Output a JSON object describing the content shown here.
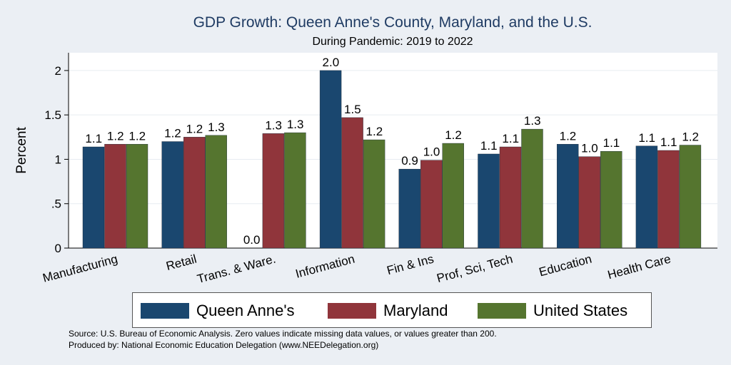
{
  "chart_data": {
    "type": "bar",
    "title": "GDP Growth: Queen Anne's County, Maryland, and the U.S.",
    "subtitle": "During Pandemic: 2019 to 2022",
    "ylabel": "Percent",
    "xlabel": "",
    "ylim": [
      0,
      2.2
    ],
    "yticks": [
      {
        "value": 0,
        "label": "0"
      },
      {
        "value": 0.5,
        "label": ".5"
      },
      {
        "value": 1,
        "label": "1"
      },
      {
        "value": 1.5,
        "label": "1.5"
      },
      {
        "value": 2,
        "label": "2"
      }
    ],
    "grid": true,
    "legend_position": "bottom",
    "categories": [
      "Manufacturing",
      "Retail",
      "Trans. & Ware.",
      "Information",
      "Fin & Ins",
      "Prof, Sci, Tech",
      "Education",
      "Health Care"
    ],
    "series": [
      {
        "name": "Queen Anne's",
        "color": "#1a476f",
        "values": [
          1.14,
          1.2,
          0.0,
          2.0,
          0.89,
          1.06,
          1.17,
          1.15
        ],
        "labels": [
          "1.1",
          "1.2",
          "0.0",
          "2.0",
          "0.9",
          "1.1",
          "1.2",
          "1.1"
        ]
      },
      {
        "name": "Maryland",
        "color": "#90353b",
        "values": [
          1.17,
          1.25,
          1.29,
          1.47,
          0.99,
          1.14,
          1.03,
          1.1
        ],
        "labels": [
          "1.2",
          "1.2",
          "1.3",
          "1.5",
          "1.0",
          "1.1",
          "1.0",
          "1.1"
        ]
      },
      {
        "name": "United States",
        "color": "#55752f",
        "values": [
          1.17,
          1.27,
          1.3,
          1.22,
          1.18,
          1.34,
          1.09,
          1.16
        ],
        "labels": [
          "1.2",
          "1.3",
          "1.3",
          "1.2",
          "1.2",
          "1.3",
          "1.1",
          "1.2"
        ]
      }
    ]
  },
  "footer": {
    "source": "Source: U.S. Bureau of Economic Analysis. Zero values indicate missing data values, or values greater than 200.",
    "produced_by": "Produced by: National Economic Education Delegation (www.NEEDelegation.org)"
  }
}
